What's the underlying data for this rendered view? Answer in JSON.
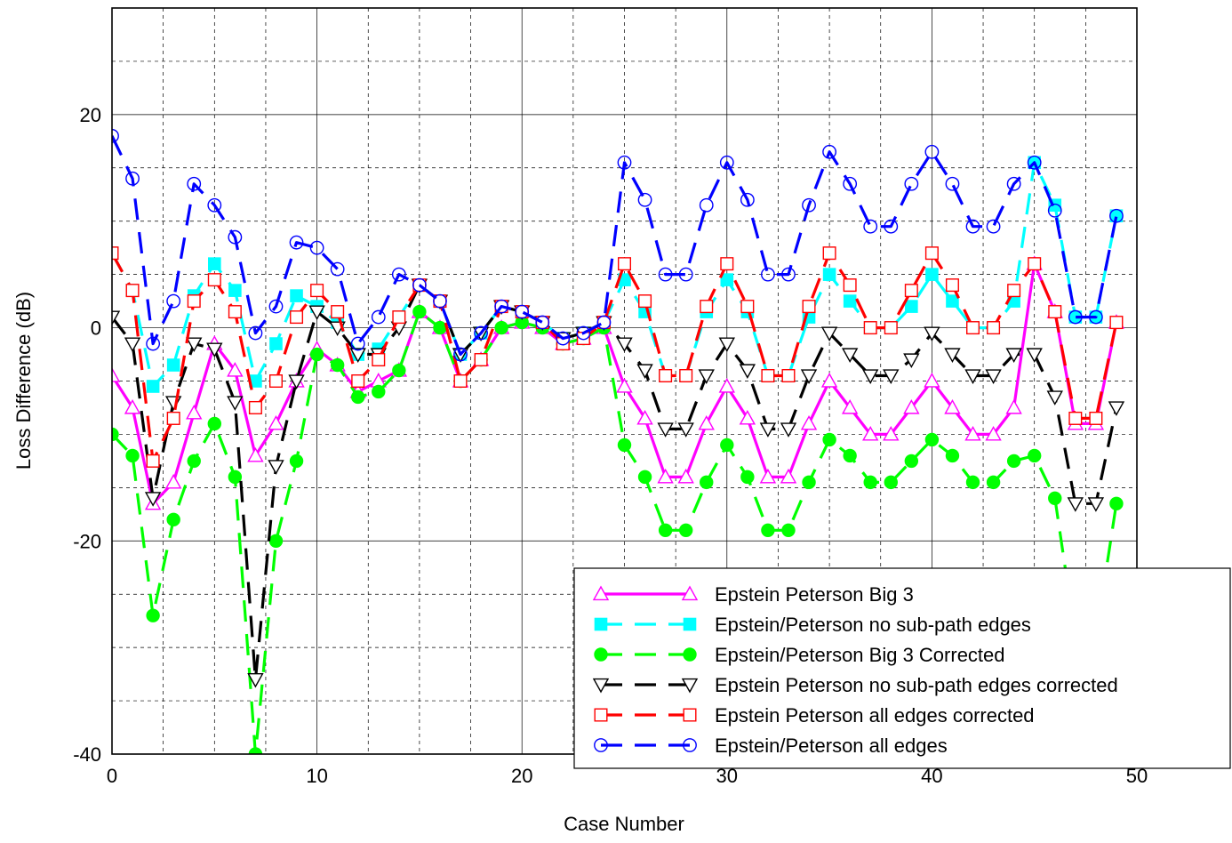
{
  "chart_data": {
    "type": "line",
    "title": "",
    "xlabel": "Case Number",
    "ylabel": "Loss Difference (dB)",
    "xlim": [
      0,
      50
    ],
    "ylim": [
      -40,
      30
    ],
    "xticks": [
      "0",
      "10",
      "20",
      "30",
      "40",
      "50"
    ],
    "yticks": [
      "-40",
      "-20",
      "0",
      "20"
    ],
    "grid": true,
    "legend_position": "bottom-right",
    "x": [
      0,
      1,
      2,
      3,
      4,
      5,
      6,
      7,
      8,
      9,
      10,
      11,
      12,
      13,
      14,
      15,
      16,
      17,
      18,
      19,
      20,
      21,
      22,
      23,
      24,
      25,
      26,
      27,
      28,
      29,
      30,
      31,
      32,
      33,
      34,
      35,
      36,
      37,
      38,
      39,
      40,
      41,
      42,
      43,
      44,
      45,
      46,
      47,
      48,
      49
    ],
    "series": [
      {
        "name": "Epstein Peterson Big 3",
        "color": "#ff00ff",
        "line": "solid",
        "marker": "triangle-up-open",
        "values": [
          -4.5,
          -7.5,
          -16.5,
          -14.5,
          -8,
          -1.5,
          -4,
          -12,
          -9,
          -5,
          -2,
          -3.5,
          -6,
          -5,
          -4,
          1.5,
          0,
          -5,
          -3,
          0,
          0.5,
          0,
          -1.5,
          -1,
          0,
          -5.5,
          -8.5,
          -14,
          -14,
          -9,
          -5.5,
          -8.5,
          -14,
          -14,
          -9,
          -5,
          -7.5,
          -10,
          -10,
          -7.5,
          -5,
          -7.5,
          -10,
          -10,
          -7.5,
          6,
          1.5,
          -9,
          -9,
          0.5
        ]
      },
      {
        "name": "Epstein/Peterson no sub-path edges",
        "color": "#00ffff",
        "line": "dashed",
        "marker": "square-filled",
        "values": [
          7,
          3.5,
          -5.5,
          -3.5,
          3,
          6,
          3.5,
          -5,
          -1.5,
          3,
          2,
          0.5,
          -2.5,
          -2,
          1,
          4,
          2.5,
          -2.5,
          -0.5,
          2,
          1.5,
          0.5,
          -1,
          -0.5,
          0.5,
          4.5,
          1.5,
          -4.5,
          -4.5,
          1.5,
          4.5,
          1.5,
          -4.5,
          -4.5,
          1,
          5,
          2.5,
          0,
          0,
          2,
          5,
          2.5,
          0,
          0,
          2.5,
          15.5,
          11.5,
          1,
          1,
          10.5
        ]
      },
      {
        "name": "Epstein/Peterson Big 3 Corrected",
        "color": "#00ff00",
        "line": "dashed",
        "marker": "circle-filled",
        "values": [
          -10,
          -12,
          -27,
          -18,
          -12.5,
          -9,
          -14,
          -40,
          -20,
          -12.5,
          -2.5,
          -3.5,
          -6.5,
          -6,
          -4,
          1.5,
          0,
          -5,
          -3,
          0,
          0.5,
          0,
          -1.5,
          -1,
          0,
          -11,
          -14,
          -19,
          -19,
          -14.5,
          -11,
          -14,
          -19,
          -19,
          -14.5,
          -10.5,
          -12,
          -14.5,
          -14.5,
          -12.5,
          -10.5,
          -12,
          -14.5,
          -14.5,
          -12.5,
          -12,
          -16,
          -29,
          -29,
          -16.5
        ]
      },
      {
        "name": "Epstein Peterson no sub-path edges corrected",
        "color": "#000000",
        "line": "dashed",
        "marker": "triangle-down-open",
        "values": [
          1,
          -1.5,
          -16,
          -7,
          -1.5,
          -2,
          -7,
          -33,
          -13,
          -5,
          1.5,
          0,
          -2.5,
          -2.5,
          0,
          4,
          2.5,
          -2.5,
          -0.5,
          2,
          1.5,
          0.5,
          -1,
          -0.5,
          0.5,
          -1.5,
          -4,
          -9.5,
          -9.5,
          -4.5,
          -1.5,
          -4,
          -9.5,
          -9.5,
          -4.5,
          -0.5,
          -2.5,
          -4.5,
          -4.5,
          -3,
          -0.5,
          -2.5,
          -4.5,
          -4.5,
          -2.5,
          -2.5,
          -6.5,
          -16.5,
          -16.5,
          -7.5
        ]
      },
      {
        "name": "Epstein Peterson all edges corrected",
        "color": "#ff0000",
        "line": "dashed",
        "marker": "square-open",
        "values": [
          7,
          3.5,
          -12.5,
          -8.5,
          2.5,
          4.5,
          1.5,
          -7.5,
          -5,
          1,
          3.5,
          1.5,
          -5,
          -3,
          1,
          4,
          2.5,
          -5,
          -3,
          2,
          1.5,
          0.5,
          -1.5,
          -1,
          0.5,
          6,
          2.5,
          -4.5,
          -4.5,
          2,
          6,
          2,
          -4.5,
          -4.5,
          2,
          7,
          4,
          0,
          0,
          3.5,
          7,
          4,
          0,
          0,
          3.5,
          6,
          1.5,
          -8.5,
          -8.5,
          0.5
        ]
      },
      {
        "name": "Epstein/Peterson all edges",
        "color": "#0000ff",
        "line": "dashed",
        "marker": "circle-open",
        "values": [
          18,
          14,
          -1.5,
          2.5,
          13.5,
          11.5,
          8.5,
          -0.5,
          2,
          8,
          7.5,
          5.5,
          -1.5,
          1,
          5,
          4,
          2.5,
          -2.5,
          -0.5,
          2,
          1.5,
          0.5,
          -1,
          -0.5,
          0.5,
          15.5,
          12,
          5,
          5,
          11.5,
          15.5,
          12,
          5,
          5,
          11.5,
          16.5,
          13.5,
          9.5,
          9.5,
          13.5,
          16.5,
          13.5,
          9.5,
          9.5,
          13.5,
          15.5,
          11,
          1,
          1,
          10.5
        ]
      }
    ]
  }
}
